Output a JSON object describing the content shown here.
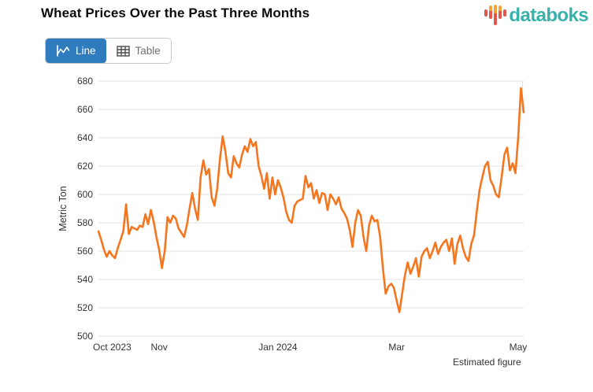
{
  "header": {
    "title": "Wheat Prices Over the Past Three Months"
  },
  "logo": {
    "text": "databoks",
    "text_color": "#38b1ab",
    "bar_red": "#e2574c",
    "bar_orange": "#f2a33c"
  },
  "toolbar": {
    "line_label": "Line",
    "table_label": "Table",
    "active_tab": "Line",
    "active_color": "#2e7cbe"
  },
  "chart_data": {
    "type": "line",
    "title": "Wheat Prices Over the Past Three Months",
    "xlabel": "",
    "ylabel": "Metric Ton",
    "ylim": [
      500,
      680
    ],
    "yticks": [
      500,
      520,
      540,
      560,
      580,
      600,
      620,
      640,
      660,
      680
    ],
    "grid": true,
    "legend": "none",
    "line_color": "#f4761f",
    "x_ticks": [
      {
        "index": 0,
        "label": "Oct 2023"
      },
      {
        "index": 22,
        "label": "Nov"
      },
      {
        "index": 65,
        "label": "Jan 2024"
      },
      {
        "index": 108,
        "label": "Mar"
      },
      {
        "index": 152,
        "label": "May"
      }
    ],
    "values": [
      574,
      568,
      561,
      556,
      560,
      557,
      555,
      562,
      568,
      574,
      593,
      572,
      577,
      576,
      575,
      578,
      577,
      586,
      579,
      589,
      581,
      570,
      561,
      548,
      560,
      584,
      580,
      585,
      583,
      576,
      573,
      570,
      578,
      590,
      601,
      590,
      582,
      612,
      624,
      614,
      618,
      598,
      592,
      604,
      625,
      641,
      630,
      615,
      612,
      627,
      622,
      619,
      628,
      634,
      630,
      639,
      634,
      637,
      620,
      613,
      604,
      615,
      597,
      612,
      600,
      610,
      605,
      598,
      588,
      582,
      580,
      592,
      595,
      596,
      597,
      613,
      605,
      608,
      597,
      603,
      594,
      601,
      600,
      589,
      600,
      597,
      593,
      598,
      590,
      587,
      583,
      575,
      563,
      580,
      589,
      585,
      570,
      560,
      578,
      585,
      581,
      582,
      570,
      548,
      530,
      535,
      537,
      534,
      525,
      517,
      530,
      543,
      552,
      544,
      549,
      555,
      542,
      556,
      560,
      562,
      555,
      560,
      566,
      558,
      563,
      566,
      568,
      560,
      569,
      551,
      565,
      571,
      562,
      556,
      553,
      565,
      571,
      588,
      603,
      612,
      620,
      623,
      610,
      606,
      600,
      598,
      612,
      628,
      633,
      617,
      622,
      615,
      640,
      675,
      658
    ],
    "footnote": "Estimated figure"
  }
}
